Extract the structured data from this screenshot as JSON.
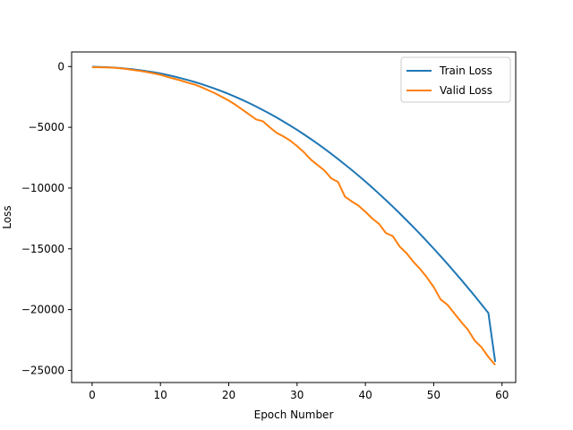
{
  "chart_data": {
    "type": "line",
    "title": "",
    "xlabel": "Epoch Number",
    "ylabel": "Loss",
    "xlim": [
      -3,
      62
    ],
    "ylim": [
      -26000,
      1200
    ],
    "xticks": [
      0,
      10,
      20,
      30,
      40,
      50,
      60
    ],
    "yticks": [
      0,
      -5000,
      -10000,
      -15000,
      -20000,
      -25000
    ],
    "grid": false,
    "legend_position": "top-right",
    "x": [
      0,
      1,
      2,
      3,
      4,
      5,
      6,
      7,
      8,
      9,
      10,
      11,
      12,
      13,
      14,
      15,
      16,
      17,
      18,
      19,
      20,
      21,
      22,
      23,
      24,
      25,
      26,
      27,
      28,
      29,
      30,
      31,
      32,
      33,
      34,
      35,
      36,
      37,
      38,
      39,
      40,
      41,
      42,
      43,
      44,
      45,
      46,
      47,
      48,
      49,
      50,
      51,
      52,
      53,
      54,
      55,
      56,
      57,
      58,
      59
    ],
    "series": [
      {
        "name": "Train Loss",
        "color": "#1f77b4",
        "values": [
          -20,
          -30,
          -50,
          -80,
          -120,
          -170,
          -230,
          -300,
          -380,
          -470,
          -570,
          -690,
          -820,
          -960,
          -1110,
          -1270,
          -1440,
          -1630,
          -1830,
          -2040,
          -2260,
          -2500,
          -2750,
          -3010,
          -3290,
          -3580,
          -3880,
          -4190,
          -4520,
          -4860,
          -5210,
          -5580,
          -5960,
          -6350,
          -6760,
          -7180,
          -7610,
          -8060,
          -8510,
          -8980,
          -9460,
          -9960,
          -10470,
          -10990,
          -11520,
          -12070,
          -12630,
          -13200,
          -13780,
          -14380,
          -14980,
          -15600,
          -16230,
          -16880,
          -17530,
          -18200,
          -18880,
          -19580,
          -20280,
          -24300
        ]
      },
      {
        "name": "Valid Loss",
        "color": "#ff7f0e",
        "values": [
          -50,
          -60,
          -70,
          -90,
          -140,
          -200,
          -280,
          -360,
          -450,
          -560,
          -680,
          -850,
          -1000,
          -1150,
          -1330,
          -1480,
          -1700,
          -1950,
          -2200,
          -2500,
          -2800,
          -3150,
          -3550,
          -3950,
          -4350,
          -4500,
          -5000,
          -5450,
          -5750,
          -6100,
          -6550,
          -7050,
          -7650,
          -8100,
          -8550,
          -9200,
          -9500,
          -10700,
          -11100,
          -11450,
          -11950,
          -12500,
          -12950,
          -13700,
          -13950,
          -14800,
          -15350,
          -16050,
          -16650,
          -17350,
          -18150,
          -19150,
          -19600,
          -20300,
          -21000,
          -21650,
          -22550,
          -23100,
          -23900,
          -24550
        ]
      }
    ]
  }
}
